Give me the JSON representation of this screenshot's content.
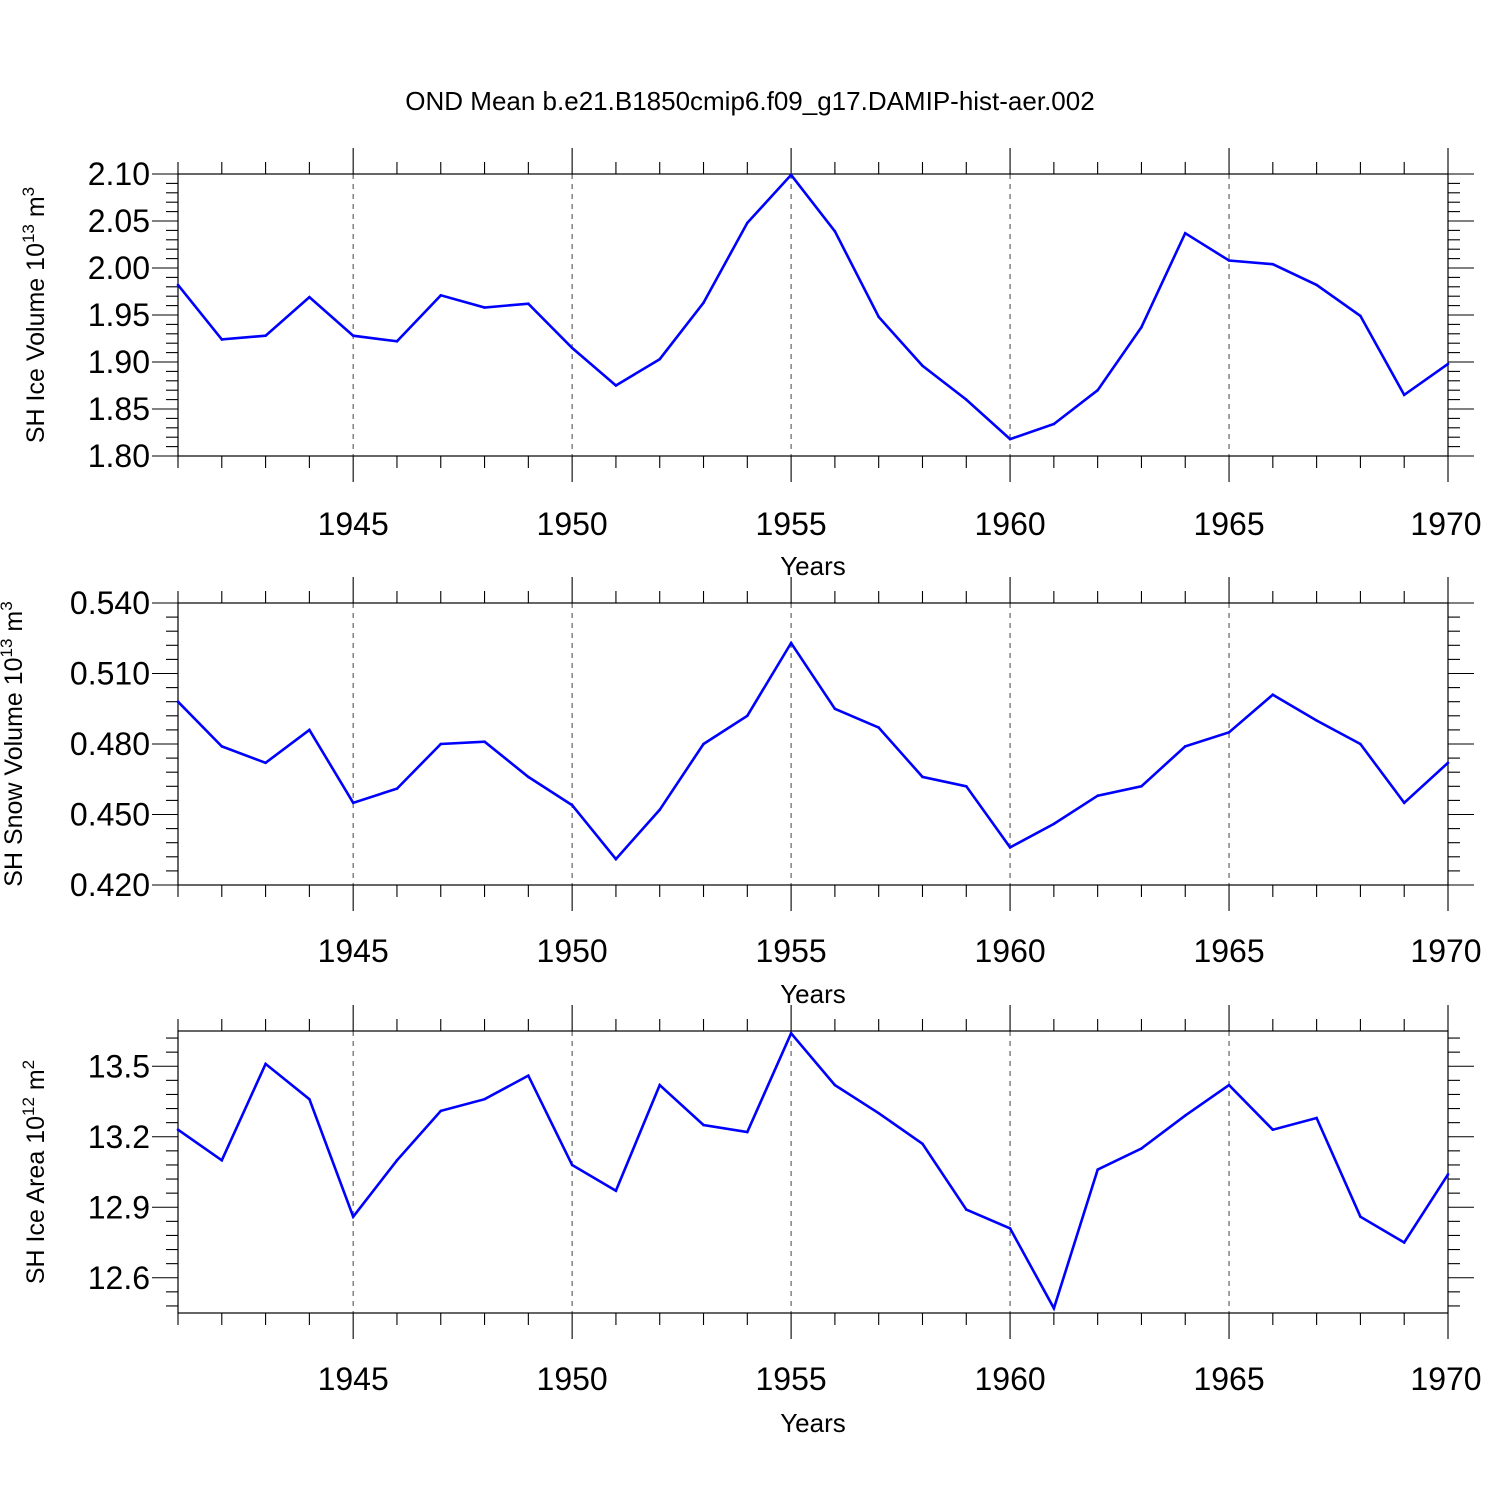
{
  "title": "OND Mean b.e21.B1850cmip6.f09_g17.DAMIP-hist-aer.002",
  "colors": {
    "series": "#0000ff",
    "axis": "#000000",
    "grid": "#555555"
  },
  "chart_data": [
    {
      "type": "line",
      "ylabel": {
        "main": "SH Ice Volume 10",
        "exp": "13",
        "unit": " m",
        "unit_exp": "3"
      },
      "xlabel": "Years",
      "xlim": [
        1941,
        1970
      ],
      "ylim": [
        1.8,
        2.1
      ],
      "yticks": [
        1.8,
        1.85,
        1.9,
        1.95,
        2.0,
        2.05,
        2.1
      ],
      "ytick_labels": [
        "1.80",
        "1.85",
        "1.90",
        "1.95",
        "2.00",
        "2.05",
        "2.10"
      ],
      "xticks": [
        1945,
        1950,
        1955,
        1960,
        1965,
        1970
      ],
      "xtick_labels": [
        "1945",
        "1950",
        "1955",
        "1960",
        "1965",
        "1970"
      ],
      "grid_x": [
        1945,
        1950,
        1955,
        1960,
        1965
      ],
      "x": [
        1941,
        1942,
        1943,
        1944,
        1945,
        1946,
        1947,
        1948,
        1949,
        1950,
        1951,
        1952,
        1953,
        1954,
        1955,
        1956,
        1957,
        1958,
        1959,
        1960,
        1961,
        1962,
        1963,
        1964,
        1965,
        1966,
        1967,
        1968,
        1969,
        1970
      ],
      "values": [
        1.982,
        1.924,
        1.928,
        1.969,
        1.928,
        1.922,
        1.971,
        1.958,
        1.962,
        1.915,
        1.875,
        1.903,
        1.963,
        2.048,
        2.099,
        2.039,
        1.948,
        1.896,
        1.86,
        1.818,
        1.834,
        1.87,
        1.937,
        2.037,
        2.008,
        2.004,
        1.982,
        1.949,
        1.865,
        1.898
      ]
    },
    {
      "type": "line",
      "ylabel": {
        "main": "SH Snow Volume 10",
        "exp": "13",
        "unit": " m",
        "unit_exp": "3"
      },
      "xlabel": "Years",
      "xlim": [
        1941,
        1970
      ],
      "ylim": [
        0.42,
        0.54
      ],
      "yticks": [
        0.42,
        0.45,
        0.48,
        0.51,
        0.54
      ],
      "ytick_labels": [
        "0.420",
        "0.450",
        "0.480",
        "0.510",
        "0.540"
      ],
      "xticks": [
        1945,
        1950,
        1955,
        1960,
        1965,
        1970
      ],
      "xtick_labels": [
        "1945",
        "1950",
        "1955",
        "1960",
        "1965",
        "1970"
      ],
      "grid_x": [
        1945,
        1950,
        1955,
        1960,
        1965
      ],
      "x": [
        1941,
        1942,
        1943,
        1944,
        1945,
        1946,
        1947,
        1948,
        1949,
        1950,
        1951,
        1952,
        1953,
        1954,
        1955,
        1956,
        1957,
        1958,
        1959,
        1960,
        1961,
        1962,
        1963,
        1964,
        1965,
        1966,
        1967,
        1968,
        1969,
        1970
      ],
      "values": [
        0.498,
        0.479,
        0.472,
        0.486,
        0.455,
        0.461,
        0.48,
        0.481,
        0.466,
        0.454,
        0.431,
        0.452,
        0.48,
        0.492,
        0.523,
        0.495,
        0.487,
        0.466,
        0.462,
        0.436,
        0.446,
        0.458,
        0.462,
        0.479,
        0.485,
        0.501,
        0.49,
        0.48,
        0.455,
        0.472
      ]
    },
    {
      "type": "line",
      "ylabel": {
        "main": "SH Ice Area 10",
        "exp": "12",
        "unit": " m",
        "unit_exp": "2"
      },
      "xlabel": "Years",
      "xlim": [
        1941,
        1970
      ],
      "ylim": [
        12.45,
        13.65
      ],
      "yticks": [
        12.6,
        12.9,
        13.2,
        13.5
      ],
      "ytick_labels": [
        "12.6",
        "12.9",
        "13.2",
        "13.5"
      ],
      "xticks": [
        1945,
        1950,
        1955,
        1960,
        1965,
        1970
      ],
      "xtick_labels": [
        "1945",
        "1950",
        "1955",
        "1960",
        "1965",
        "1970"
      ],
      "grid_x": [
        1945,
        1950,
        1955,
        1960,
        1965
      ],
      "x": [
        1941,
        1942,
        1943,
        1944,
        1945,
        1946,
        1947,
        1948,
        1949,
        1950,
        1951,
        1952,
        1953,
        1954,
        1955,
        1956,
        1957,
        1958,
        1959,
        1960,
        1961,
        1962,
        1963,
        1964,
        1965,
        1966,
        1967,
        1968,
        1969,
        1970
      ],
      "values": [
        13.23,
        13.1,
        13.51,
        13.36,
        12.86,
        13.1,
        13.31,
        13.36,
        13.46,
        13.08,
        12.97,
        13.42,
        13.25,
        13.22,
        13.64,
        13.42,
        13.3,
        13.17,
        12.89,
        12.81,
        12.47,
        13.06,
        13.15,
        13.29,
        13.42,
        13.23,
        13.28,
        12.86,
        12.75,
        13.04
      ]
    }
  ]
}
